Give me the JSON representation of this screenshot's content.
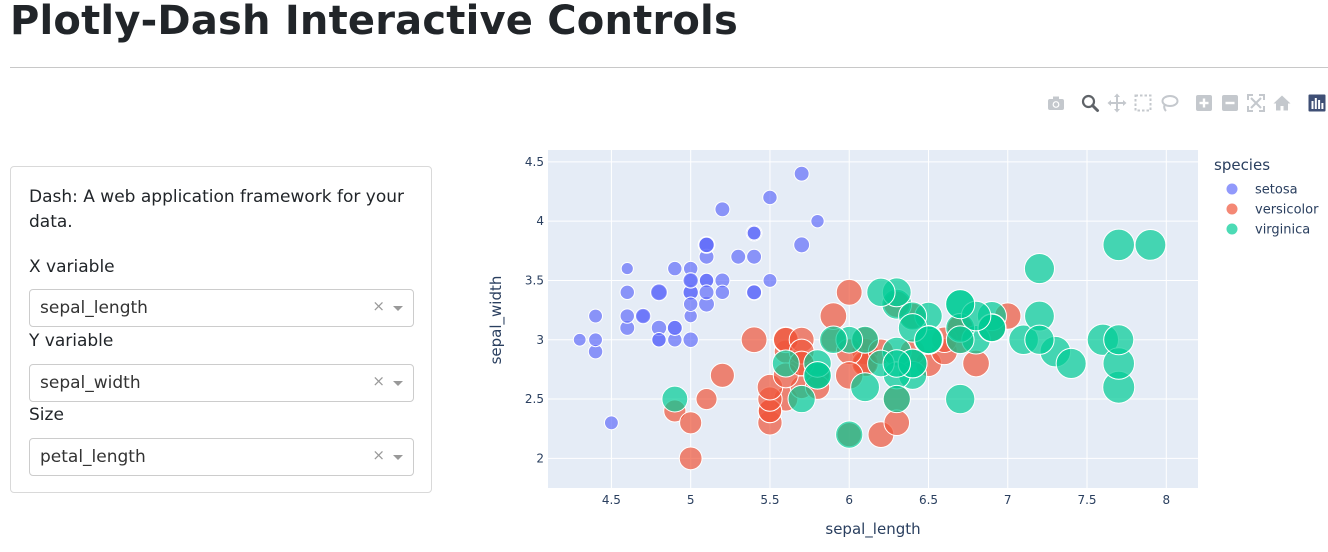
{
  "page": {
    "title": "Plotly-Dash Interactive Controls"
  },
  "modebar": {
    "icons": [
      "camera-icon",
      "zoom-icon",
      "pan-icon",
      "box-select-icon",
      "lasso-icon",
      "zoom-in-icon",
      "zoom-out-icon",
      "autoscale-icon",
      "reset-axes-icon",
      "plotly-logo-icon"
    ]
  },
  "controls": {
    "description": "Dash: A web application framework for your data.",
    "x": {
      "label": "X variable",
      "value": "sepal_length"
    },
    "y": {
      "label": "Y variable",
      "value": "sepal_width"
    },
    "size": {
      "label": "Size",
      "value": "petal_length"
    },
    "clear_glyph": "×"
  },
  "chart_data": {
    "type": "scatter",
    "title": "",
    "xlabel": "sepal_length",
    "ylabel": "sepal_width",
    "xlim": [
      4.1,
      8.2
    ],
    "ylim": [
      1.75,
      4.6
    ],
    "xticks": [
      "4.5",
      "5",
      "5.5",
      "6",
      "6.5",
      "7",
      "7.5",
      "8"
    ],
    "yticks": [
      "2",
      "2.5",
      "3",
      "3.5",
      "4",
      "4.5"
    ],
    "grid": true,
    "legend_title": "species",
    "legend_position": "top-right",
    "size_variable": "petal_length",
    "series": [
      {
        "name": "setosa",
        "color": "#636efa",
        "points": [
          [
            5.1,
            3.5,
            1.4
          ],
          [
            4.9,
            3.0,
            1.4
          ],
          [
            4.7,
            3.2,
            1.3
          ],
          [
            4.6,
            3.1,
            1.5
          ],
          [
            5.0,
            3.6,
            1.4
          ],
          [
            5.4,
            3.9,
            1.7
          ],
          [
            4.6,
            3.4,
            1.4
          ],
          [
            5.0,
            3.4,
            1.5
          ],
          [
            4.4,
            2.9,
            1.4
          ],
          [
            4.9,
            3.1,
            1.5
          ],
          [
            5.4,
            3.7,
            1.5
          ],
          [
            4.8,
            3.4,
            1.6
          ],
          [
            4.8,
            3.0,
            1.4
          ],
          [
            4.3,
            3.0,
            1.1
          ],
          [
            5.8,
            4.0,
            1.2
          ],
          [
            5.7,
            4.4,
            1.5
          ],
          [
            5.4,
            3.9,
            1.3
          ],
          [
            5.1,
            3.5,
            1.4
          ],
          [
            5.7,
            3.8,
            1.7
          ],
          [
            5.1,
            3.8,
            1.5
          ],
          [
            5.4,
            3.4,
            1.7
          ],
          [
            5.1,
            3.7,
            1.5
          ],
          [
            4.6,
            3.6,
            1.0
          ],
          [
            5.1,
            3.3,
            1.7
          ],
          [
            4.8,
            3.4,
            1.9
          ],
          [
            5.0,
            3.0,
            1.6
          ],
          [
            5.0,
            3.4,
            1.6
          ],
          [
            5.2,
            3.5,
            1.5
          ],
          [
            5.2,
            3.4,
            1.4
          ],
          [
            4.7,
            3.2,
            1.6
          ],
          [
            4.8,
            3.1,
            1.6
          ],
          [
            5.4,
            3.4,
            1.5
          ],
          [
            5.2,
            4.1,
            1.5
          ],
          [
            5.5,
            4.2,
            1.4
          ],
          [
            4.9,
            3.1,
            1.5
          ],
          [
            5.0,
            3.2,
            1.2
          ],
          [
            5.5,
            3.5,
            1.3
          ],
          [
            4.9,
            3.6,
            1.4
          ],
          [
            4.4,
            3.0,
            1.3
          ],
          [
            5.1,
            3.4,
            1.5
          ],
          [
            5.0,
            3.5,
            1.3
          ],
          [
            4.5,
            2.3,
            1.3
          ],
          [
            4.4,
            3.2,
            1.3
          ],
          [
            5.0,
            3.5,
            1.6
          ],
          [
            5.1,
            3.8,
            1.9
          ],
          [
            4.8,
            3.0,
            1.4
          ],
          [
            5.1,
            3.8,
            1.6
          ],
          [
            4.6,
            3.2,
            1.4
          ],
          [
            5.3,
            3.7,
            1.5
          ],
          [
            5.0,
            3.3,
            1.4
          ]
        ]
      },
      {
        "name": "versicolor",
        "color": "#ef553b",
        "points": [
          [
            7.0,
            3.2,
            4.7
          ],
          [
            6.4,
            3.2,
            4.5
          ],
          [
            6.9,
            3.1,
            4.9
          ],
          [
            5.5,
            2.3,
            4.0
          ],
          [
            6.5,
            2.8,
            4.6
          ],
          [
            5.7,
            2.8,
            4.5
          ],
          [
            6.3,
            3.3,
            4.7
          ],
          [
            4.9,
            2.4,
            3.3
          ],
          [
            6.6,
            2.9,
            4.6
          ],
          [
            5.2,
            2.7,
            3.9
          ],
          [
            5.0,
            2.0,
            3.5
          ],
          [
            5.9,
            3.0,
            4.2
          ],
          [
            6.0,
            2.2,
            4.0
          ],
          [
            6.1,
            2.9,
            4.7
          ],
          [
            5.6,
            2.9,
            3.6
          ],
          [
            6.7,
            3.1,
            4.4
          ],
          [
            5.6,
            3.0,
            4.5
          ],
          [
            5.8,
            2.7,
            4.1
          ],
          [
            6.2,
            2.2,
            4.5
          ],
          [
            5.6,
            2.5,
            3.9
          ],
          [
            5.9,
            3.2,
            4.8
          ],
          [
            6.1,
            2.8,
            4.0
          ],
          [
            6.3,
            2.5,
            4.9
          ],
          [
            6.1,
            2.8,
            4.7
          ],
          [
            6.4,
            2.9,
            4.3
          ],
          [
            6.6,
            3.0,
            4.4
          ],
          [
            6.8,
            2.8,
            4.8
          ],
          [
            6.7,
            3.0,
            5.0
          ],
          [
            6.0,
            2.9,
            4.5
          ],
          [
            5.7,
            2.6,
            3.5
          ],
          [
            5.5,
            2.4,
            3.8
          ],
          [
            5.5,
            2.4,
            3.7
          ],
          [
            5.8,
            2.7,
            3.9
          ],
          [
            6.0,
            2.7,
            5.1
          ],
          [
            5.4,
            3.0,
            4.5
          ],
          [
            6.0,
            3.4,
            4.5
          ],
          [
            6.7,
            3.1,
            4.7
          ],
          [
            6.3,
            2.3,
            4.4
          ],
          [
            5.6,
            3.0,
            4.1
          ],
          [
            5.5,
            2.5,
            4.0
          ],
          [
            5.5,
            2.6,
            4.4
          ],
          [
            6.1,
            3.0,
            4.6
          ],
          [
            5.8,
            2.6,
            4.0
          ],
          [
            5.0,
            2.3,
            3.3
          ],
          [
            5.6,
            2.7,
            4.2
          ],
          [
            5.7,
            3.0,
            4.2
          ],
          [
            5.7,
            2.9,
            4.2
          ],
          [
            6.2,
            2.9,
            4.3
          ],
          [
            5.1,
            2.5,
            3.0
          ],
          [
            5.7,
            2.8,
            4.1
          ]
        ]
      },
      {
        "name": "virginica",
        "color": "#00cc96",
        "points": [
          [
            6.3,
            3.3,
            6.0
          ],
          [
            5.8,
            2.7,
            5.1
          ],
          [
            7.1,
            3.0,
            5.9
          ],
          [
            6.3,
            2.9,
            5.6
          ],
          [
            6.5,
            3.0,
            5.8
          ],
          [
            7.6,
            3.0,
            6.6
          ],
          [
            4.9,
            2.5,
            4.5
          ],
          [
            7.3,
            2.9,
            6.3
          ],
          [
            6.7,
            2.5,
            5.8
          ],
          [
            7.2,
            3.6,
            6.1
          ],
          [
            6.5,
            3.2,
            5.1
          ],
          [
            6.4,
            2.7,
            5.3
          ],
          [
            6.8,
            3.0,
            5.5
          ],
          [
            5.7,
            2.5,
            5.0
          ],
          [
            5.8,
            2.8,
            5.1
          ],
          [
            6.4,
            3.2,
            5.3
          ],
          [
            6.5,
            3.0,
            5.5
          ],
          [
            7.7,
            3.8,
            6.7
          ],
          [
            7.7,
            2.6,
            6.9
          ],
          [
            6.0,
            2.2,
            5.0
          ],
          [
            6.9,
            3.2,
            5.7
          ],
          [
            5.6,
            2.8,
            4.9
          ],
          [
            7.7,
            2.8,
            6.7
          ],
          [
            6.3,
            2.7,
            4.9
          ],
          [
            6.7,
            3.3,
            5.7
          ],
          [
            7.2,
            3.2,
            6.0
          ],
          [
            6.2,
            2.8,
            4.8
          ],
          [
            6.1,
            3.0,
            4.9
          ],
          [
            6.4,
            2.8,
            5.6
          ],
          [
            7.2,
            3.0,
            5.8
          ],
          [
            7.4,
            2.8,
            6.1
          ],
          [
            7.9,
            3.8,
            6.4
          ],
          [
            6.4,
            2.8,
            5.6
          ],
          [
            6.3,
            2.8,
            5.1
          ],
          [
            6.1,
            2.6,
            5.6
          ],
          [
            7.7,
            3.0,
            6.1
          ],
          [
            6.3,
            3.4,
            5.6
          ],
          [
            6.4,
            3.1,
            5.5
          ],
          [
            6.0,
            3.0,
            4.8
          ],
          [
            6.9,
            3.1,
            5.4
          ],
          [
            6.7,
            3.1,
            5.6
          ],
          [
            6.9,
            3.1,
            5.1
          ],
          [
            5.8,
            2.7,
            5.1
          ],
          [
            6.8,
            3.2,
            5.9
          ],
          [
            6.7,
            3.3,
            5.7
          ],
          [
            6.7,
            3.0,
            5.2
          ],
          [
            6.3,
            2.5,
            5.0
          ],
          [
            6.5,
            3.0,
            5.2
          ],
          [
            6.2,
            3.4,
            5.4
          ],
          [
            5.9,
            3.0,
            5.1
          ]
        ]
      }
    ]
  }
}
